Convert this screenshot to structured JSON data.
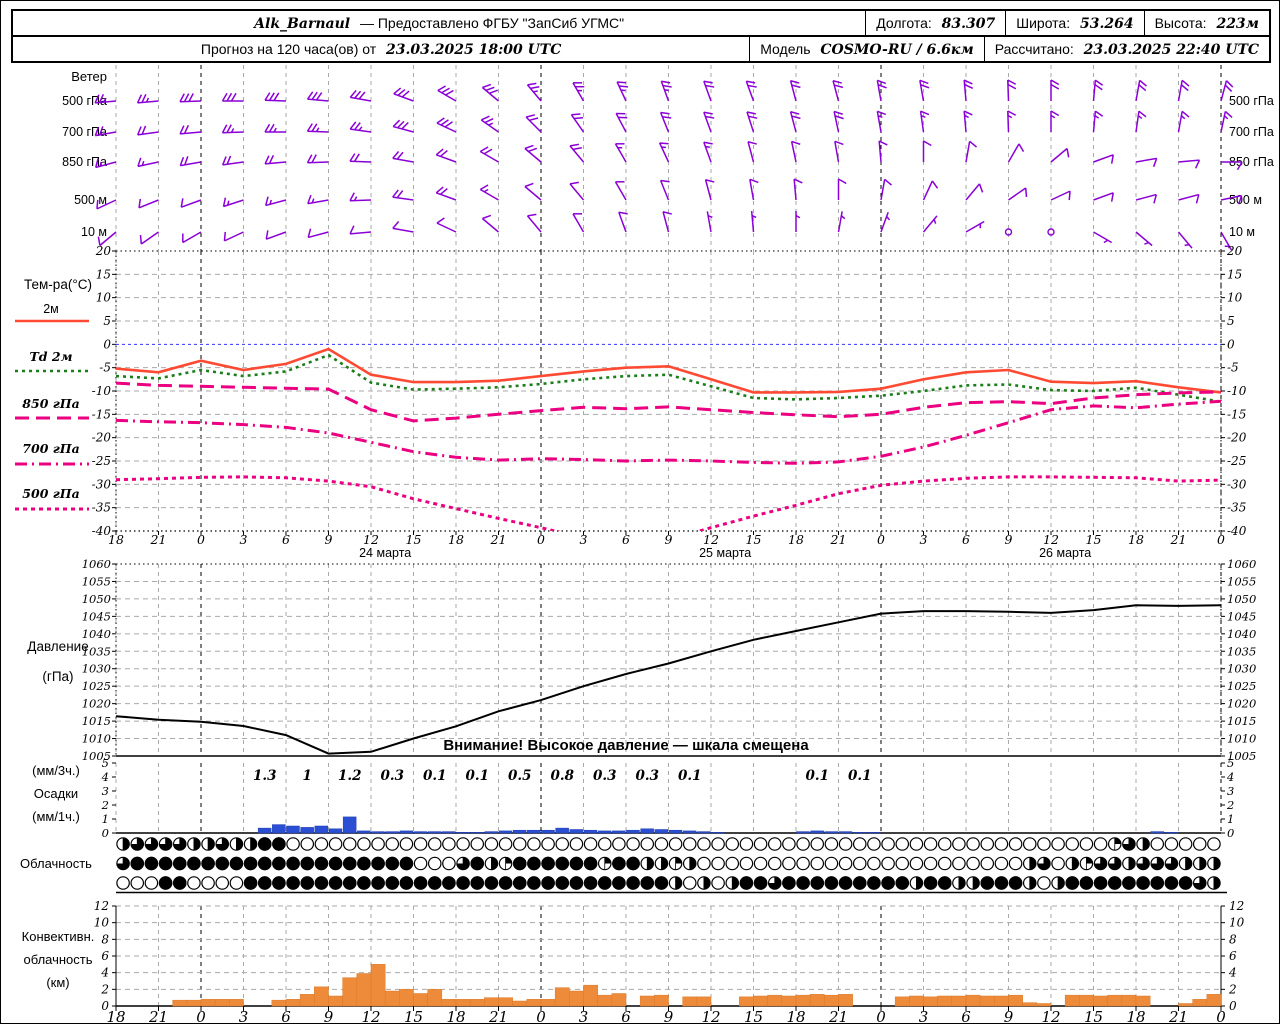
{
  "header": {
    "station": "Alk_Barnaul",
    "provider": "— Предоставлено ФГБУ \"ЗапСиб УГМС\"",
    "lon_label": "Долгота:",
    "lon": "83.307",
    "lat_label": "Широта:",
    "lat": "53.264",
    "alt_label": "Высота:",
    "alt": "223м",
    "forecast_label": "Прогноз на 120 часа(ов) от",
    "forecast_start": "23.03.2025 18:00 UTC",
    "model_label": "Модель",
    "model": "COSMO-RU / 6.6км",
    "calc_label": "Рассчитано:",
    "calc_time": "23.03.2025 22:40 UTC"
  },
  "colors": {
    "wind": "#8B00D6",
    "t2m": "#FF4A33",
    "td2m": "#1B7E1B",
    "t850": "#EA0080",
    "t700": "#EA0080",
    "t500": "#EA0080",
    "pressure": "#000000",
    "precip": "#2B4FD4",
    "convective": "#EE8B3B",
    "grid": "#AAAAAA",
    "zero_line": "#3333FF",
    "midnight_line": "#000000"
  },
  "chart_data": {
    "type": "meteogram",
    "x_hours_total": 78,
    "x_step_hours": 3,
    "hour_tick_labels": [
      "18",
      "21",
      "0",
      "3",
      "6",
      "9",
      "12",
      "15",
      "18",
      "21",
      "0",
      "3",
      "6",
      "9",
      "12",
      "15",
      "18",
      "21",
      "0",
      "3",
      "6",
      "9",
      "12",
      "15",
      "18",
      "21",
      "0"
    ],
    "date_labels": [
      {
        "label": "24 марта",
        "t": 19
      },
      {
        "label": "25 марта",
        "t": 43
      },
      {
        "label": "26 марта",
        "t": 67
      }
    ],
    "wind": {
      "title": "Ветер",
      "levels": [
        {
          "label": "500 гПа",
          "dirs": [
            265,
            265,
            268,
            270,
            272,
            275,
            280,
            290,
            300,
            310,
            320,
            330,
            335,
            340,
            340,
            340,
            345,
            345,
            350,
            350,
            355,
            358,
            0,
            5,
            10,
            10,
            15
          ],
          "speeds": [
            25,
            25,
            28,
            30,
            30,
            30,
            28,
            30,
            30,
            28,
            25,
            25,
            25,
            25,
            22,
            22,
            20,
            20,
            20,
            20,
            18,
            18,
            18,
            20,
            20,
            18,
            18
          ]
        },
        {
          "label": "700 гПа",
          "dirs": [
            260,
            262,
            265,
            268,
            270,
            272,
            278,
            285,
            295,
            305,
            315,
            325,
            332,
            338,
            340,
            342,
            345,
            348,
            350,
            352,
            355,
            358,
            0,
            5,
            8,
            10,
            12
          ],
          "speeds": [
            20,
            20,
            22,
            25,
            25,
            25,
            25,
            28,
            28,
            25,
            22,
            22,
            20,
            20,
            20,
            18,
            18,
            18,
            15,
            15,
            15,
            15,
            15,
            15,
            15,
            15,
            15
          ]
        },
        {
          "label": "850 гПа",
          "dirs": [
            255,
            258,
            260,
            262,
            265,
            268,
            272,
            280,
            290,
            300,
            310,
            320,
            330,
            335,
            340,
            345,
            348,
            350,
            355,
            0,
            10,
            30,
            50,
            70,
            80,
            85,
            90
          ],
          "speeds": [
            15,
            15,
            18,
            20,
            20,
            20,
            20,
            22,
            22,
            20,
            18,
            18,
            15,
            15,
            15,
            12,
            12,
            10,
            10,
            10,
            8,
            8,
            8,
            8,
            8,
            10,
            10
          ]
        },
        {
          "label": "500 м",
          "dirs": [
            245,
            248,
            250,
            252,
            255,
            260,
            268,
            278,
            290,
            300,
            310,
            320,
            330,
            338,
            345,
            350,
            355,
            0,
            10,
            25,
            40,
            55,
            65,
            70,
            75,
            75,
            78
          ],
          "speeds": [
            10,
            10,
            12,
            15,
            15,
            15,
            15,
            18,
            18,
            15,
            12,
            12,
            10,
            10,
            10,
            10,
            8,
            8,
            8,
            8,
            8,
            8,
            8,
            10,
            10,
            10,
            10
          ]
        },
        {
          "label": "10 м",
          "dirs": [
            230,
            235,
            240,
            245,
            250,
            255,
            265,
            280,
            295,
            310,
            320,
            330,
            340,
            345,
            350,
            355,
            0,
            10,
            20,
            40,
            60,
            80,
            100,
            120,
            130,
            140,
            150
          ],
          "speeds": [
            8,
            8,
            10,
            10,
            10,
            10,
            12,
            12,
            12,
            10,
            8,
            8,
            8,
            8,
            5,
            5,
            5,
            5,
            5,
            5,
            3,
            0,
            0,
            3,
            5,
            5,
            5
          ]
        }
      ]
    },
    "temperature": {
      "title": "Тем-ра(°C)",
      "ylim": [
        -40,
        20
      ],
      "ytick_step": 5,
      "series": [
        {
          "name": "2м",
          "style": "solid",
          "color": "#FF4A33",
          "values": [
            -5.2,
            -6.0,
            -3.5,
            -5.5,
            -4.2,
            -1.0,
            -6.5,
            -8.1,
            -8.1,
            -7.8,
            -6.8,
            -5.8,
            -5.0,
            -4.7,
            -7.5,
            -10.3,
            -10.3,
            -10.2,
            -9.5,
            -7.5,
            -6.0,
            -5.5,
            -8.0,
            -8.3,
            -7.9,
            -9.2,
            -10.3
          ]
        },
        {
          "name": "Td 2м",
          "style": "dotted",
          "color": "#1B7E1B",
          "values": [
            -6.8,
            -7.3,
            -5.5,
            -6.8,
            -5.8,
            -2.3,
            -8.2,
            -9.7,
            -9.5,
            -9.2,
            -8.5,
            -7.5,
            -6.8,
            -6.5,
            -9.0,
            -11.5,
            -11.8,
            -11.5,
            -11.0,
            -10.0,
            -8.8,
            -8.6,
            -9.8,
            -10.0,
            -9.3,
            -10.8,
            -12.3
          ]
        },
        {
          "name": "850 гПа",
          "style": "longdash",
          "color": "#EA0080",
          "values": [
            -8.3,
            -8.8,
            -9.0,
            -9.2,
            -9.4,
            -9.6,
            -14.0,
            -16.4,
            -15.8,
            -15.0,
            -14.2,
            -13.5,
            -13.8,
            -13.4,
            -14.0,
            -14.6,
            -15.1,
            -15.5,
            -15.0,
            -13.5,
            -12.5,
            -12.3,
            -12.7,
            -11.5,
            -10.8,
            -10.4,
            -10.2
          ]
        },
        {
          "name": "700 гПа",
          "style": "dashdot",
          "color": "#EA0080",
          "values": [
            -16.3,
            -16.6,
            -16.8,
            -17.2,
            -17.8,
            -19.0,
            -21.0,
            -23.0,
            -24.2,
            -24.8,
            -24.5,
            -24.7,
            -25.0,
            -24.8,
            -25.0,
            -25.3,
            -25.5,
            -25.2,
            -24.0,
            -22.0,
            -19.5,
            -16.8,
            -14.0,
            -13.2,
            -13.6,
            -12.8,
            -12.2
          ]
        },
        {
          "name": "500 гПа",
          "style": "shortdash",
          "color": "#EA0080",
          "values": [
            -29.0,
            -28.8,
            -28.5,
            -28.4,
            -28.6,
            -29.3,
            -30.5,
            -33.1,
            -35.2,
            -37.3,
            -39.3,
            -41.5,
            -42.0,
            -42.0,
            -39.3,
            -36.8,
            -34.5,
            -32.0,
            -30.2,
            -29.3,
            -28.7,
            -28.4,
            -28.4,
            -28.5,
            -28.6,
            -29.3,
            -29.1
          ]
        }
      ]
    },
    "pressure": {
      "title": "Давление",
      "unit": "(гПа)",
      "ylim": [
        1005,
        1060
      ],
      "ytick_step": 5,
      "warning": "Внимание! Высокое давление — шкала смещена",
      "values": [
        1016.4,
        1015.4,
        1014.8,
        1013.6,
        1011.0,
        1005.7,
        1006.2,
        1010.0,
        1013.5,
        1017.8,
        1021.0,
        1025.0,
        1028.5,
        1031.5,
        1035.0,
        1038.3,
        1040.8,
        1043.3,
        1045.8,
        1046.5,
        1046.5,
        1046.3,
        1046.0,
        1046.8,
        1048.2,
        1048.0,
        1048.2
      ]
    },
    "precipitation": {
      "left_labels": [
        "(мм/3ч.)",
        "Осадки",
        "(мм/1ч.)"
      ],
      "ylim": [
        0,
        5
      ],
      "hourly": [
        0,
        0,
        0,
        0,
        0,
        0,
        0,
        0,
        0,
        0,
        0.35,
        0.6,
        0.5,
        0.4,
        0.5,
        0.3,
        1.15,
        0.15,
        0.1,
        0.1,
        0.15,
        0.1,
        0.1,
        0.1,
        0.05,
        0.05,
        0.1,
        0.15,
        0.2,
        0.2,
        0.2,
        0.35,
        0.25,
        0.2,
        0.15,
        0.15,
        0.2,
        0.3,
        0.25,
        0.2,
        0.15,
        0.1,
        0.05,
        0,
        0,
        0,
        0,
        0,
        0.1,
        0.15,
        0.1,
        0.1,
        0.05,
        0.05,
        0,
        0,
        0,
        0,
        0,
        0,
        0,
        0,
        0,
        0,
        0,
        0,
        0,
        0,
        0,
        0,
        0,
        0,
        0,
        0.1,
        0.05,
        0,
        0,
        0
      ],
      "labels_3h": [
        {
          "t": 10.5,
          "v": "1.3"
        },
        {
          "t": 13.5,
          "v": "1"
        },
        {
          "t": 16.5,
          "v": "1.2"
        },
        {
          "t": 19.5,
          "v": "0.3"
        },
        {
          "t": 22.5,
          "v": "0.1"
        },
        {
          "t": 25.5,
          "v": "0.1"
        },
        {
          "t": 28.5,
          "v": "0.5"
        },
        {
          "t": 31.5,
          "v": "0.8"
        },
        {
          "t": 34.5,
          "v": "0.3"
        },
        {
          "t": 37.5,
          "v": "0.3"
        },
        {
          "t": 40.5,
          "v": "0.1"
        },
        {
          "t": 49.5,
          "v": "0.1"
        },
        {
          "t": 52.5,
          "v": "0.1"
        }
      ]
    },
    "cloudiness": {
      "title": "Облачность",
      "rows_octas": [
        [
          4,
          6,
          6,
          6,
          6,
          4,
          4,
          6,
          4,
          4,
          8,
          8,
          0,
          0,
          0,
          0,
          0,
          0,
          0,
          0,
          0,
          0,
          0,
          0,
          0,
          0,
          0,
          0,
          0,
          0,
          0,
          0,
          0,
          0,
          0,
          0,
          0,
          0,
          0,
          0,
          0,
          0,
          0,
          0,
          0,
          0,
          0,
          0,
          0,
          0,
          0,
          0,
          0,
          0,
          0,
          0,
          0,
          0,
          0,
          0,
          0,
          0,
          0,
          0,
          0,
          0,
          0,
          0,
          0,
          0,
          2,
          6,
          4,
          0,
          0,
          0,
          0,
          0
        ],
        [
          6,
          8,
          8,
          8,
          8,
          8,
          8,
          8,
          8,
          8,
          8,
          8,
          8,
          8,
          8,
          8,
          8,
          8,
          8,
          8,
          8,
          0,
          0,
          0,
          6,
          8,
          4,
          2,
          8,
          8,
          8,
          8,
          8,
          8,
          2,
          8,
          8,
          4,
          4,
          2,
          4,
          0,
          0,
          0,
          0,
          0,
          0,
          0,
          0,
          0,
          0,
          0,
          0,
          0,
          0,
          0,
          0,
          0,
          0,
          0,
          0,
          0,
          0,
          0,
          4,
          6,
          0,
          4,
          2,
          6,
          6,
          4,
          6,
          6,
          6,
          4,
          4,
          4
        ],
        [
          0,
          0,
          0,
          8,
          8,
          0,
          0,
          0,
          0,
          8,
          8,
          8,
          8,
          8,
          8,
          8,
          8,
          8,
          8,
          8,
          8,
          8,
          8,
          8,
          8,
          8,
          8,
          8,
          8,
          8,
          8,
          8,
          8,
          8,
          8,
          8,
          8,
          8,
          8,
          4,
          0,
          4,
          0,
          4,
          8,
          8,
          6,
          8,
          8,
          8,
          8,
          8,
          8,
          8,
          8,
          8,
          4,
          8,
          8,
          4,
          4,
          8,
          8,
          8,
          4,
          0,
          4,
          8,
          8,
          8,
          8,
          8,
          8,
          8,
          8,
          8,
          6,
          4
        ]
      ]
    },
    "convective": {
      "title_lines": [
        "Конвективн.",
        "облачность",
        "(км)"
      ],
      "ylim": [
        0,
        12
      ],
      "ytick_step": 2,
      "hourly": [
        0,
        0,
        0,
        0,
        0.7,
        0.7,
        0.8,
        0.8,
        0.8,
        0,
        0,
        0.7,
        0.8,
        1.4,
        2.3,
        1.2,
        3.4,
        3.9,
        5.0,
        1.8,
        2.0,
        1.5,
        2.0,
        0.8,
        0.8,
        0.8,
        1.0,
        1.0,
        0.6,
        0.8,
        0.8,
        2.2,
        1.8,
        2.5,
        1.3,
        1.5,
        0,
        1.2,
        1.3,
        0,
        1.1,
        1.1,
        0,
        0,
        1.1,
        1.2,
        1.3,
        1.2,
        1.3,
        1.4,
        1.3,
        1.4,
        0,
        0,
        0,
        1.1,
        1.2,
        1.1,
        1.2,
        1.2,
        1.3,
        1.2,
        1.2,
        1.3,
        0.4,
        0.3,
        0,
        1.3,
        1.3,
        1.2,
        1.3,
        1.3,
        1.2,
        0,
        0,
        0.3,
        0.8,
        1.4
      ]
    }
  }
}
